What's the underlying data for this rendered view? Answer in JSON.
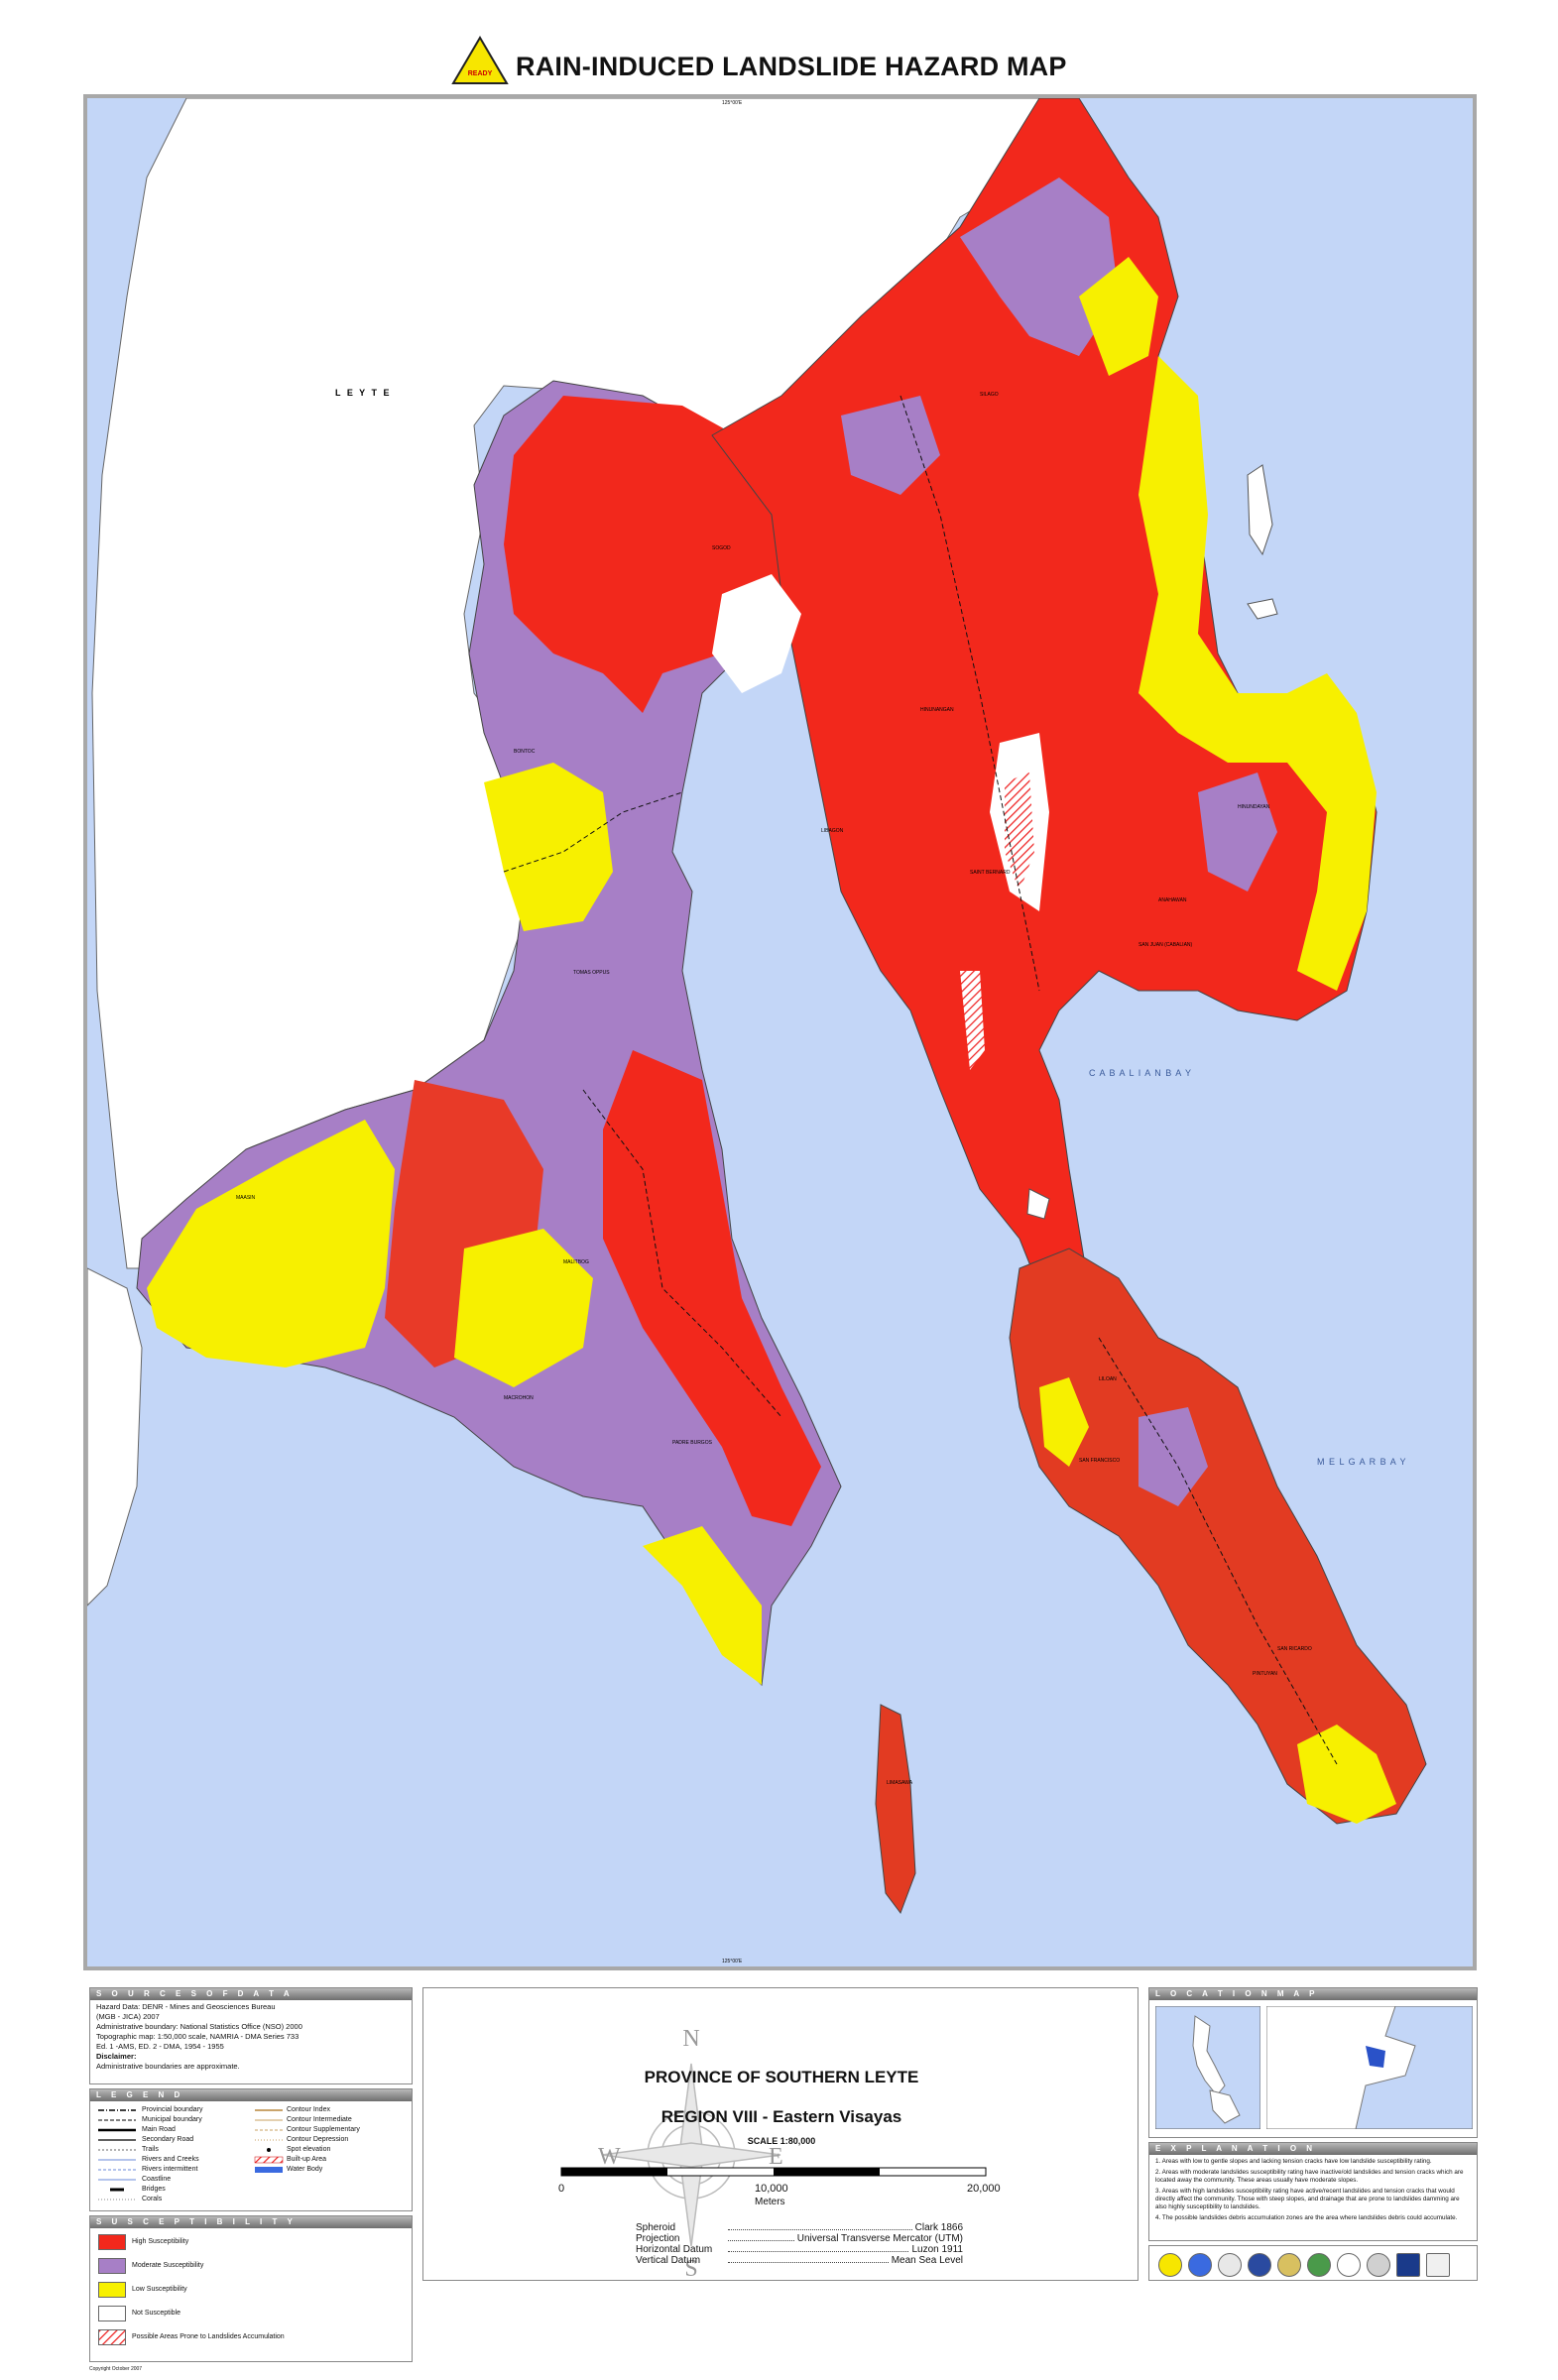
{
  "header": {
    "title": "RAIN-INDUCED LANDSLIDE HAZARD MAP",
    "badge": "READY",
    "badge_color": "#f7e600"
  },
  "map": {
    "colors": {
      "water": "#c3d6f7",
      "high": "#f2281c",
      "moderate": "#a77fc6",
      "low": "#f7f000",
      "not_susceptible": "#ffffff",
      "frame": "#a8a8a8"
    },
    "labels": {
      "leyte": "L E Y T E",
      "cabalian_bay": "C A B A L I A N   B A Y",
      "melgar_bay": "M E L G A R   B A Y",
      "sogod": "SOGOD",
      "bontoc": "BONTOC",
      "tomas_oppus": "TOMAS OPPUS",
      "malitbog": "MALITBOG",
      "maasin": "MAASIN",
      "macrohon": "MACROHON",
      "padre_burgos": "PADRE BURGOS",
      "libagon": "LIBAGON",
      "limasawa": "LIMASAWA",
      "silago": "SILAGO",
      "hinunangan": "HINUNANGAN",
      "libagon_town": "LIBAGON",
      "saint_bernard": "SAINT BERNARD",
      "anahawan": "ANAHAWAN",
      "hinundayan": "HINUNDAYAN",
      "san_juan": "SAN JUAN (CABALIAN)",
      "liloan": "LILOAN",
      "san_francisco": "SAN FRANCISCO",
      "san_ricardo": "SAN RICARDO",
      "pintuyan": "PINTUYAN",
      "grid_top": "125°00'E",
      "grid_bottom": "125°00'E"
    }
  },
  "sources": {
    "heading": "S O U R C E S   O F   D A T A",
    "lines": [
      "Hazard Data: DENR - Mines and Geosciences Bureau",
      "(MGB - JICA) 2007",
      "Administrative boundary: National Statistics Office (NSO) 2000",
      "Topographic map: 1:50,000 scale,  NAMRIA - DMA Series 733",
      "Ed. 1 -AMS, ED. 2 - DMA, 1954 - 1955"
    ],
    "disclaimer_label": "Disclaimer:",
    "disclaimer_text": "Administrative boundaries are approximate."
  },
  "legend": {
    "heading": "L E G E N D",
    "left": [
      "Provincial boundary",
      "Municipal boundary",
      "Main Road",
      "Secondary Road",
      "Trails",
      "Rivers and Creeks",
      "Rivers intermittent",
      "Coastline",
      "Bridges",
      "Corals"
    ],
    "right": [
      "Contour Index",
      "Contour Intermediate",
      "Contour Supplementary",
      "Contour Depression",
      "Spot elevation",
      "Built-up Area",
      "Water Body"
    ]
  },
  "susceptibility": {
    "heading": "S U S C E P T I B I L I T Y",
    "items": [
      {
        "label": "High Susceptibility",
        "color": "#f2281c"
      },
      {
        "label": "Moderate Susceptibility",
        "color": "#a77fc6"
      },
      {
        "label": "Low Susceptibility",
        "color": "#f7f000"
      },
      {
        "label": "Not Susceptible",
        "color": "#ffffff"
      },
      {
        "label": "Possible Areas Prone to Landslides Accumulation",
        "color": "hatch"
      }
    ]
  },
  "center": {
    "province": "PROVINCE OF SOUTHERN LEYTE",
    "region": "REGION VIII - Eastern Visayas",
    "scale": "SCALE  1:80,000",
    "bar_labels": [
      "0",
      "10,000",
      "20,000"
    ],
    "unit": "Meters",
    "compass": {
      "n": "N",
      "s": "S",
      "e": "E",
      "w": "W"
    },
    "specs": [
      {
        "label": "Spheroid",
        "value": "Clark 1866"
      },
      {
        "label": "Projection",
        "value": "Universal Transverse Mercator (UTM)"
      },
      {
        "label": "Horizontal Datum",
        "value": "Luzon 1911"
      },
      {
        "label": "Vertical Datum",
        "value": "Mean Sea Level"
      }
    ]
  },
  "location_map": {
    "heading": "L O C A T I O N   M A P"
  },
  "explanation": {
    "heading": "E X P L A N A T I O N",
    "items": [
      "1. Areas with low to gentle slopes and lacking tension cracks have low landslide susceptibility rating.",
      "2. Areas with moderate landslides susceptibility rating have inactive/old landslides and tension cracks which are located away the community. These areas usually have moderate slopes.",
      "3. Areas with high landslides susceptibility rating have active/recent landslides and tension cracks that would directly affect the community. Those with steep slopes, and drainage that are prone to landslides damming are also highly susceptibility to landslides.",
      "4. The possible landslides debris accumulation zones are the area where landslides debris could accumulate."
    ]
  },
  "footer": {
    "copyright": "Copyright October 2007"
  }
}
